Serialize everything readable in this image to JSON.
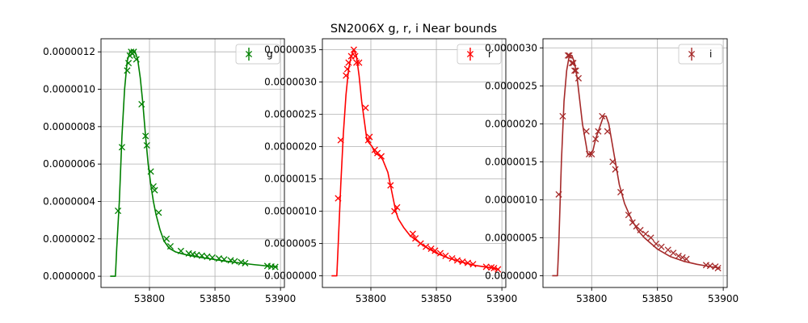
{
  "title": "SN2006X  g, r, i Near bounds",
  "chart_data": [
    {
      "type": "line",
      "band": "g",
      "color": "#008000",
      "legend": {
        "label": "g",
        "placement": "top-right"
      },
      "xlim": [
        53763,
        53903
      ],
      "ylim": [
        -6e-08,
        1.27e-06
      ],
      "xticks": [
        53800,
        53850,
        53900
      ],
      "yticks": [
        0,
        2e-07,
        4e-07,
        6e-07,
        8e-07,
        1e-06,
        1.2e-06
      ],
      "ytick_labels": [
        "0.0000000",
        "0.0000002",
        "0.0000004",
        "0.0000006",
        "0.0000008",
        "0.0000010",
        "0.0000012"
      ],
      "grid": true,
      "model_curve": {
        "x": [
          53770,
          53774,
          53775,
          53777,
          53779,
          53781,
          53783,
          53785,
          53787,
          53789,
          53791,
          53793,
          53795,
          53797,
          53799,
          53801,
          53803,
          53805,
          53808,
          53811,
          53815,
          53820,
          53825,
          53830,
          53840,
          53850,
          53860,
          53870,
          53880,
          53890,
          53898
        ],
        "y": [
          0,
          0,
          1.5e-07,
          4e-07,
          7.5e-07,
          1e-06,
          1.15e-06,
          1.2e-06,
          1.21e-06,
          1.2e-06,
          1.16e-06,
          1.06e-06,
          9.2e-07,
          7.5e-07,
          6e-07,
          4.9e-07,
          4e-07,
          3.3e-07,
          2.5e-07,
          1.9e-07,
          1.5e-07,
          1.3e-07,
          1.2e-07,
          1.12e-07,
          1e-07,
          8.9e-08,
          7.9e-08,
          7e-08,
          6.2e-08,
          5.5e-08,
          5e-08
        ]
      },
      "observations": {
        "x": [
          53776,
          53779,
          53783,
          53784,
          53785,
          53786,
          53787,
          53788,
          53790,
          53794,
          53797,
          53798,
          53801,
          53803,
          53804,
          53807,
          53813,
          53816,
          53824,
          53830,
          53833,
          53836,
          53840,
          53844,
          53848,
          53853,
          53857,
          53862,
          53865,
          53870,
          53873,
          53890,
          53893,
          53896
        ],
        "y": [
          3.5e-07,
          6.9e-07,
          1.1e-06,
          1.14e-06,
          1.18e-06,
          1.2e-06,
          1.19e-06,
          1.2e-06,
          1.16e-06,
          9.2e-07,
          7.5e-07,
          7e-07,
          5.6e-07,
          4.8e-07,
          4.6e-07,
          3.4e-07,
          2e-07,
          1.6e-07,
          1.35e-07,
          1.22e-07,
          1.18e-07,
          1.14e-07,
          1.1e-07,
          1.05e-07,
          1e-07,
          9.5e-08,
          9e-08,
          8.5e-08,
          8e-08,
          7.5e-08,
          7e-08,
          5.5e-08,
          5.2e-08,
          5e-08
        ]
      }
    },
    {
      "type": "line",
      "band": "r",
      "color": "#ff0000",
      "legend": {
        "label": "r",
        "placement": "top-right"
      },
      "xlim": [
        53763,
        53903
      ],
      "ylim": [
        -1.8e-07,
        3.67e-06
      ],
      "xticks": [
        53800,
        53850,
        53900
      ],
      "yticks": [
        0,
        5e-07,
        1e-06,
        1.5e-06,
        2e-06,
        2.5e-06,
        3e-06,
        3.5e-06
      ],
      "ytick_labels": [
        "0.0000000",
        "0.0000005",
        "0.0000010",
        "0.0000015",
        "0.0000020",
        "0.0000025",
        "0.0000030",
        "0.0000035"
      ],
      "grid": true,
      "model_curve": {
        "x": [
          53770,
          53774,
          53775,
          53777,
          53779,
          53781,
          53783,
          53785,
          53787,
          53789,
          53791,
          53793,
          53795,
          53797,
          53799,
          53801,
          53803,
          53805,
          53807,
          53809,
          53811,
          53813,
          53815,
          53817,
          53819,
          53821,
          53825,
          53830,
          53840,
          53850,
          53860,
          53870,
          53880,
          53890,
          53898
        ],
        "y": [
          0,
          0,
          4.5e-07,
          1.4e-06,
          2.2e-06,
          2.8e-06,
          3.2e-06,
          3.4e-06,
          3.5e-06,
          3.4e-06,
          3.1e-06,
          2.7e-06,
          2.4e-06,
          2.1e-06,
          2.05e-06,
          2e-06,
          1.9e-06,
          1.88e-06,
          1.85e-06,
          1.8e-06,
          1.7e-06,
          1.6e-06,
          1.4e-06,
          1.2e-06,
          1e-06,
          8.8e-07,
          7.5e-07,
          6.2e-07,
          4.7e-07,
          3.5e-07,
          2.7e-07,
          2.1e-07,
          1.6e-07,
          1.3e-07,
          1e-07
        ]
      },
      "observations": {
        "x": [
          53775,
          53777,
          53781,
          53782,
          53783,
          53785,
          53787,
          53788,
          53789,
          53791,
          53796,
          53798,
          53799,
          53803,
          53805,
          53808,
          53815,
          53818,
          53820,
          53832,
          53834,
          53838,
          53842,
          53846,
          53849,
          53853,
          53857,
          53862,
          53866,
          53870,
          53874,
          53878,
          53888,
          53892,
          53894,
          53897
        ],
        "y": [
          1.2e-06,
          2.1e-06,
          3.1e-06,
          3.2e-06,
          3.3e-06,
          3.4e-06,
          3.5e-06,
          3.4e-06,
          3.3e-06,
          3.3e-06,
          2.6e-06,
          2.1e-06,
          2.15e-06,
          1.95e-06,
          1.9e-06,
          1.85e-06,
          1.4e-06,
          1e-06,
          1.06e-06,
          6.5e-07,
          5.8e-07,
          5e-07,
          4.5e-07,
          4.2e-07,
          3.9e-07,
          3.5e-07,
          3.1e-07,
          2.7e-07,
          2.4e-07,
          2.2e-07,
          2e-07,
          1.8e-07,
          1.4e-07,
          1.3e-07,
          1.2e-07,
          1e-07
        ]
      }
    },
    {
      "type": "line",
      "band": "i",
      "color": "#a52a2a",
      "legend": {
        "label": "i",
        "placement": "top-right"
      },
      "xlim": [
        53763,
        53903
      ],
      "ylim": [
        -1.55e-07,
        3.12e-06
      ],
      "xticks": [
        53800,
        53850,
        53900
      ],
      "yticks": [
        0,
        5e-07,
        1e-06,
        1.5e-06,
        2e-06,
        2.5e-06,
        3e-06
      ],
      "ytick_labels": [
        "0.0000000",
        "0.0000005",
        "0.0000010",
        "0.0000015",
        "0.0000020",
        "0.0000025",
        "0.0000030"
      ],
      "grid": true,
      "model_curve": {
        "x": [
          53770,
          53774,
          53775,
          53777,
          53779,
          53781,
          53783,
          53785,
          53787,
          53789,
          53791,
          53793,
          53795,
          53797,
          53799,
          53801,
          53803,
          53805,
          53807,
          53809,
          53811,
          53813,
          53815,
          53817,
          53819,
          53821,
          53825,
          53830,
          53835,
          53840,
          53850,
          53860,
          53870,
          53880,
          53890,
          53898
        ],
        "y": [
          0,
          0,
          4e-07,
          1.5e-06,
          2.3e-06,
          2.7e-06,
          2.9e-06,
          2.9e-06,
          2.8e-06,
          2.6e-06,
          2.3e-06,
          2e-06,
          1.8e-06,
          1.6e-06,
          1.6e-06,
          1.65e-06,
          1.8e-06,
          1.9e-06,
          2e-06,
          2.1e-06,
          2.1e-06,
          2e-06,
          1.8e-06,
          1.6e-06,
          1.4e-06,
          1.2e-06,
          9.5e-07,
          7.5e-07,
          6e-07,
          5e-07,
          3.5e-07,
          2.5e-07,
          1.9e-07,
          1.5e-07,
          1.2e-07,
          1e-07
        ]
      },
      "observations": {
        "x": [
          53775,
          53778,
          53782,
          53783,
          53785,
          53786,
          53787,
          53788,
          53790,
          53796,
          53798,
          53800,
          53803,
          53805,
          53808,
          53812,
          53816,
          53818,
          53822,
          53828,
          53831,
          53834,
          53837,
          53841,
          53845,
          53849,
          53853,
          53858,
          53862,
          53866,
          53869,
          53872,
          53887,
          53890,
          53894,
          53896
        ],
        "y": [
          1.07e-06,
          2.1e-06,
          2.9e-06,
          2.9e-06,
          2.8e-06,
          2.8e-06,
          2.7e-06,
          2.7e-06,
          2.6e-06,
          1.9e-06,
          1.6e-06,
          1.6e-06,
          1.8e-06,
          1.9e-06,
          2.1e-06,
          1.9e-06,
          1.5e-06,
          1.4e-06,
          1.1e-06,
          8e-07,
          7e-07,
          6.5e-07,
          6e-07,
          5.5e-07,
          5e-07,
          4.2e-07,
          3.8e-07,
          3.4e-07,
          3e-07,
          2.6e-07,
          2.4e-07,
          2.2e-07,
          1.4e-07,
          1.3e-07,
          1.2e-07,
          1e-07
        ]
      }
    }
  ]
}
